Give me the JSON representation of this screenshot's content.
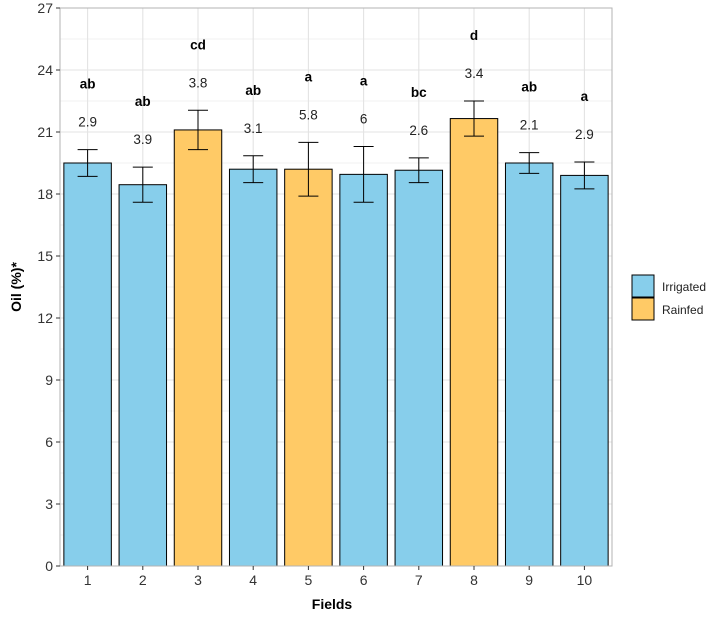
{
  "chart_data": {
    "type": "bar",
    "title": "",
    "xlabel": "Fields",
    "ylabel": "Oil (%)*",
    "ylim": [
      0,
      27
    ],
    "yticks": [
      0,
      3,
      6,
      9,
      12,
      15,
      18,
      21,
      24,
      27
    ],
    "grid": true,
    "legend_position": "right",
    "categories": [
      "1",
      "2",
      "3",
      "4",
      "5",
      "6",
      "7",
      "8",
      "9",
      "10"
    ],
    "values": [
      19.5,
      18.45,
      21.1,
      19.2,
      19.2,
      18.95,
      19.15,
      21.65,
      19.5,
      18.9
    ],
    "error": [
      0.65,
      0.85,
      0.95,
      0.65,
      1.3,
      1.35,
      0.6,
      0.85,
      0.5,
      0.65
    ],
    "group": [
      "Irrigated",
      "Irrigated",
      "Rainfed",
      "Irrigated",
      "Rainfed",
      "Irrigated",
      "Irrigated",
      "Rainfed",
      "Irrigated",
      "Irrigated"
    ],
    "cv_labels": [
      "2.9",
      "3.9",
      "3.8",
      "3.1",
      "5.8",
      "6",
      "2.6",
      "3.4",
      "2.1",
      "2.9"
    ],
    "letters": [
      "ab",
      "ab",
      "cd",
      "ab",
      "a",
      "a",
      "bc",
      "d",
      "ab",
      "a"
    ],
    "legend": [
      {
        "name": "Irrigated",
        "color": "#87ceeb"
      },
      {
        "name": "Rainfed",
        "color": "#ffca66"
      }
    ]
  },
  "colors": {
    "irrigated": "#87ceeb",
    "rainfed": "#ffca66",
    "grid": "#e3e3e3",
    "panel_border": "#b3b3b3",
    "bar_border": "#000000"
  }
}
